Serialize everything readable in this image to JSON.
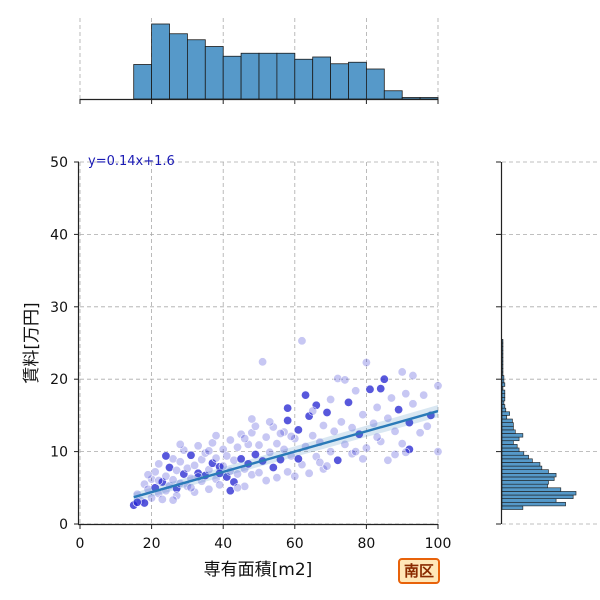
{
  "chart_data": {
    "type": "scatter",
    "xlabel": "専有面積[m2]",
    "ylabel": "賃料[万円]",
    "xlim": [
      0,
      100
    ],
    "ylim": [
      0,
      50
    ],
    "xticks": [
      0,
      20,
      40,
      60,
      80,
      100
    ],
    "yticks": [
      0,
      10,
      20,
      30,
      40,
      50
    ],
    "grid": true,
    "annotation": "y=0.14x+1.6",
    "regression": {
      "slope": 0.14,
      "intercept": 1.6,
      "x_range": [
        15,
        100
      ]
    },
    "series": [
      {
        "values": [
          [
            15,
            2.6
          ],
          [
            16,
            4.1
          ],
          [
            17,
            3.2
          ],
          [
            18,
            5.5
          ],
          [
            18,
            2.9
          ],
          [
            19,
            4.8
          ],
          [
            20,
            3.6
          ],
          [
            20,
            6.2
          ],
          [
            21,
            5.0
          ],
          [
            21,
            7.2
          ],
          [
            22,
            4.2
          ],
          [
            22,
            8.3
          ],
          [
            23,
            5.8
          ],
          [
            23,
            3.4
          ],
          [
            24,
            6.6
          ],
          [
            24,
            4.6
          ],
          [
            25,
            7.8
          ],
          [
            25,
            5.3
          ],
          [
            26,
            6.1
          ],
          [
            26,
            9.0
          ],
          [
            27,
            4.9
          ],
          [
            27,
            7.4
          ],
          [
            28,
            8.6
          ],
          [
            28,
            5.6
          ],
          [
            29,
            6.9
          ],
          [
            29,
            10.2
          ],
          [
            30,
            5.2
          ],
          [
            30,
            7.7
          ],
          [
            31,
            9.5
          ],
          [
            31,
            6.3
          ],
          [
            32,
            8.1
          ],
          [
            32,
            4.4
          ],
          [
            33,
            7.0
          ],
          [
            33,
            10.8
          ],
          [
            34,
            5.9
          ],
          [
            34,
            8.9
          ],
          [
            35,
            6.7
          ],
          [
            35,
            9.8
          ],
          [
            36,
            7.5
          ],
          [
            36,
            4.8
          ],
          [
            37,
            8.4
          ],
          [
            37,
            11.2
          ],
          [
            38,
            6.2
          ],
          [
            38,
            9.1
          ],
          [
            39,
            7.9
          ],
          [
            39,
            5.4
          ],
          [
            40,
            10.3
          ],
          [
            40,
            8.0
          ],
          [
            41,
            6.5
          ],
          [
            41,
            9.4
          ],
          [
            42,
            11.6
          ],
          [
            42,
            7.3
          ],
          [
            43,
            5.8
          ],
          [
            43,
            8.8
          ],
          [
            44,
            10.6
          ],
          [
            44,
            6.9
          ],
          [
            45,
            9.0
          ],
          [
            45,
            12.4
          ],
          [
            46,
            7.6
          ],
          [
            46,
            5.2
          ],
          [
            47,
            8.3
          ],
          [
            47,
            11.0
          ],
          [
            48,
            12.6
          ],
          [
            48,
            6.8
          ],
          [
            49,
            9.6
          ],
          [
            50,
            7.1
          ],
          [
            50,
            10.9
          ],
          [
            51,
            22.4
          ],
          [
            51,
            8.7
          ],
          [
            52,
            12.0
          ],
          [
            52,
            6.0
          ],
          [
            53,
            9.9
          ],
          [
            54,
            7.8
          ],
          [
            54,
            13.4
          ],
          [
            55,
            11.1
          ],
          [
            55,
            6.4
          ],
          [
            56,
            8.9
          ],
          [
            57,
            12.7
          ],
          [
            57,
            10.3
          ],
          [
            58,
            7.2
          ],
          [
            58,
            14.3
          ],
          [
            59,
            9.4
          ],
          [
            60,
            11.8
          ],
          [
            60,
            6.6
          ],
          [
            61,
            13.0
          ],
          [
            62,
            25.3
          ],
          [
            62,
            8.2
          ],
          [
            63,
            10.7
          ],
          [
            64,
            14.9
          ],
          [
            64,
            7.0
          ],
          [
            65,
            12.2
          ],
          [
            66,
            9.3
          ],
          [
            66,
            16.4
          ],
          [
            67,
            11.3
          ],
          [
            68,
            13.6
          ],
          [
            68,
            7.6
          ],
          [
            69,
            15.4
          ],
          [
            70,
            10.0
          ],
          [
            70,
            17.2
          ],
          [
            71,
            12.8
          ],
          [
            72,
            8.8
          ],
          [
            72,
            20.1
          ],
          [
            73,
            14.1
          ],
          [
            74,
            11.0
          ],
          [
            75,
            16.8
          ],
          [
            76,
            9.7
          ],
          [
            76,
            13.3
          ],
          [
            77,
            18.4
          ],
          [
            78,
            12.4
          ],
          [
            79,
            15.1
          ],
          [
            80,
            10.5
          ],
          [
            80,
            22.3
          ],
          [
            81,
            18.6
          ],
          [
            82,
            13.9
          ],
          [
            83,
            16.1
          ],
          [
            84,
            11.4
          ],
          [
            85,
            20.0
          ],
          [
            86,
            14.6
          ],
          [
            87,
            17.4
          ],
          [
            88,
            12.8
          ],
          [
            89,
            15.8
          ],
          [
            90,
            21.0
          ],
          [
            90,
            11.1
          ],
          [
            91,
            18.0
          ],
          [
            92,
            14.0
          ],
          [
            93,
            16.6
          ],
          [
            95,
            12.6
          ],
          [
            96,
            17.8
          ],
          [
            98,
            15.0
          ],
          [
            100,
            19.1
          ],
          [
            100,
            10.0
          ],
          [
            19,
            6.8
          ],
          [
            24,
            9.4
          ],
          [
            27,
            3.9
          ],
          [
            31,
            5.0
          ],
          [
            36,
            10.1
          ],
          [
            42,
            4.6
          ],
          [
            46,
            11.8
          ],
          [
            53,
            14.1
          ],
          [
            59,
            12.1
          ],
          [
            63,
            17.8
          ],
          [
            67,
            8.5
          ],
          [
            74,
            19.9
          ],
          [
            79,
            9.0
          ],
          [
            84,
            18.7
          ],
          [
            88,
            9.6
          ],
          [
            93,
            20.5
          ],
          [
            97,
            13.5
          ],
          [
            16,
            3.0
          ],
          [
            22,
            6.0
          ],
          [
            26,
            3.3
          ],
          [
            33,
            6.5
          ],
          [
            39,
            7.0
          ],
          [
            44,
            5.0
          ],
          [
            49,
            13.5
          ],
          [
            56,
            12.5
          ],
          [
            61,
            9.0
          ],
          [
            69,
            8.0
          ],
          [
            77,
            10.0
          ],
          [
            83,
            12.0
          ],
          [
            92,
            10.3
          ],
          [
            28,
            11.0
          ],
          [
            38,
            12.2
          ],
          [
            48,
            14.5
          ],
          [
            58,
            16.0
          ],
          [
            65,
            15.6
          ],
          [
            86,
            8.8
          ],
          [
            91,
            9.9
          ]
        ]
      }
    ],
    "top_histogram": {
      "bin_edges": [
        15,
        20,
        25,
        30,
        35,
        40,
        45,
        50,
        55,
        60,
        65,
        70,
        75,
        80,
        85,
        90,
        95,
        100
      ],
      "counts": [
        46,
        100,
        87,
        79,
        70,
        57,
        61,
        61,
        61,
        53,
        56,
        47,
        49,
        40,
        11,
        2,
        2
      ]
    },
    "right_histogram": {
      "bin_edges": [
        2,
        2.5,
        3,
        3.5,
        4,
        4.5,
        5,
        5.5,
        6,
        6.5,
        7,
        7.5,
        8,
        8.5,
        9,
        9.5,
        10,
        10.5,
        11,
        11.5,
        12,
        12.5,
        13,
        13.5,
        14,
        14.5,
        15,
        15.5,
        16,
        16.5,
        17,
        17.5,
        18,
        18.5,
        19,
        19.5,
        20,
        20.5,
        21,
        21.5,
        22,
        22.5,
        23,
        23.5,
        24,
        24.5,
        25,
        25.5
      ],
      "counts": [
        22,
        67,
        57,
        75,
        78,
        62,
        48,
        49,
        55,
        57,
        49,
        42,
        40,
        32,
        28,
        23,
        18,
        16,
        12,
        18,
        22,
        14,
        12,
        12,
        11,
        5,
        8,
        4,
        3,
        2,
        3,
        3,
        3,
        1,
        3,
        2,
        2,
        1,
        1,
        1,
        1,
        1,
        1,
        1,
        1,
        1,
        1
      ]
    }
  },
  "badge": {
    "label": "南区"
  },
  "colors": {
    "hist_fill": "#5699c9",
    "hist_edge": "#1a1a1a",
    "scatter_fill": "#2020d0",
    "regression": "#2a7ab8",
    "grid": "#aaaaaa",
    "badge_border": "#e8620a",
    "badge_bg": "#ffe7b8",
    "equation": "#1a1ab4"
  }
}
